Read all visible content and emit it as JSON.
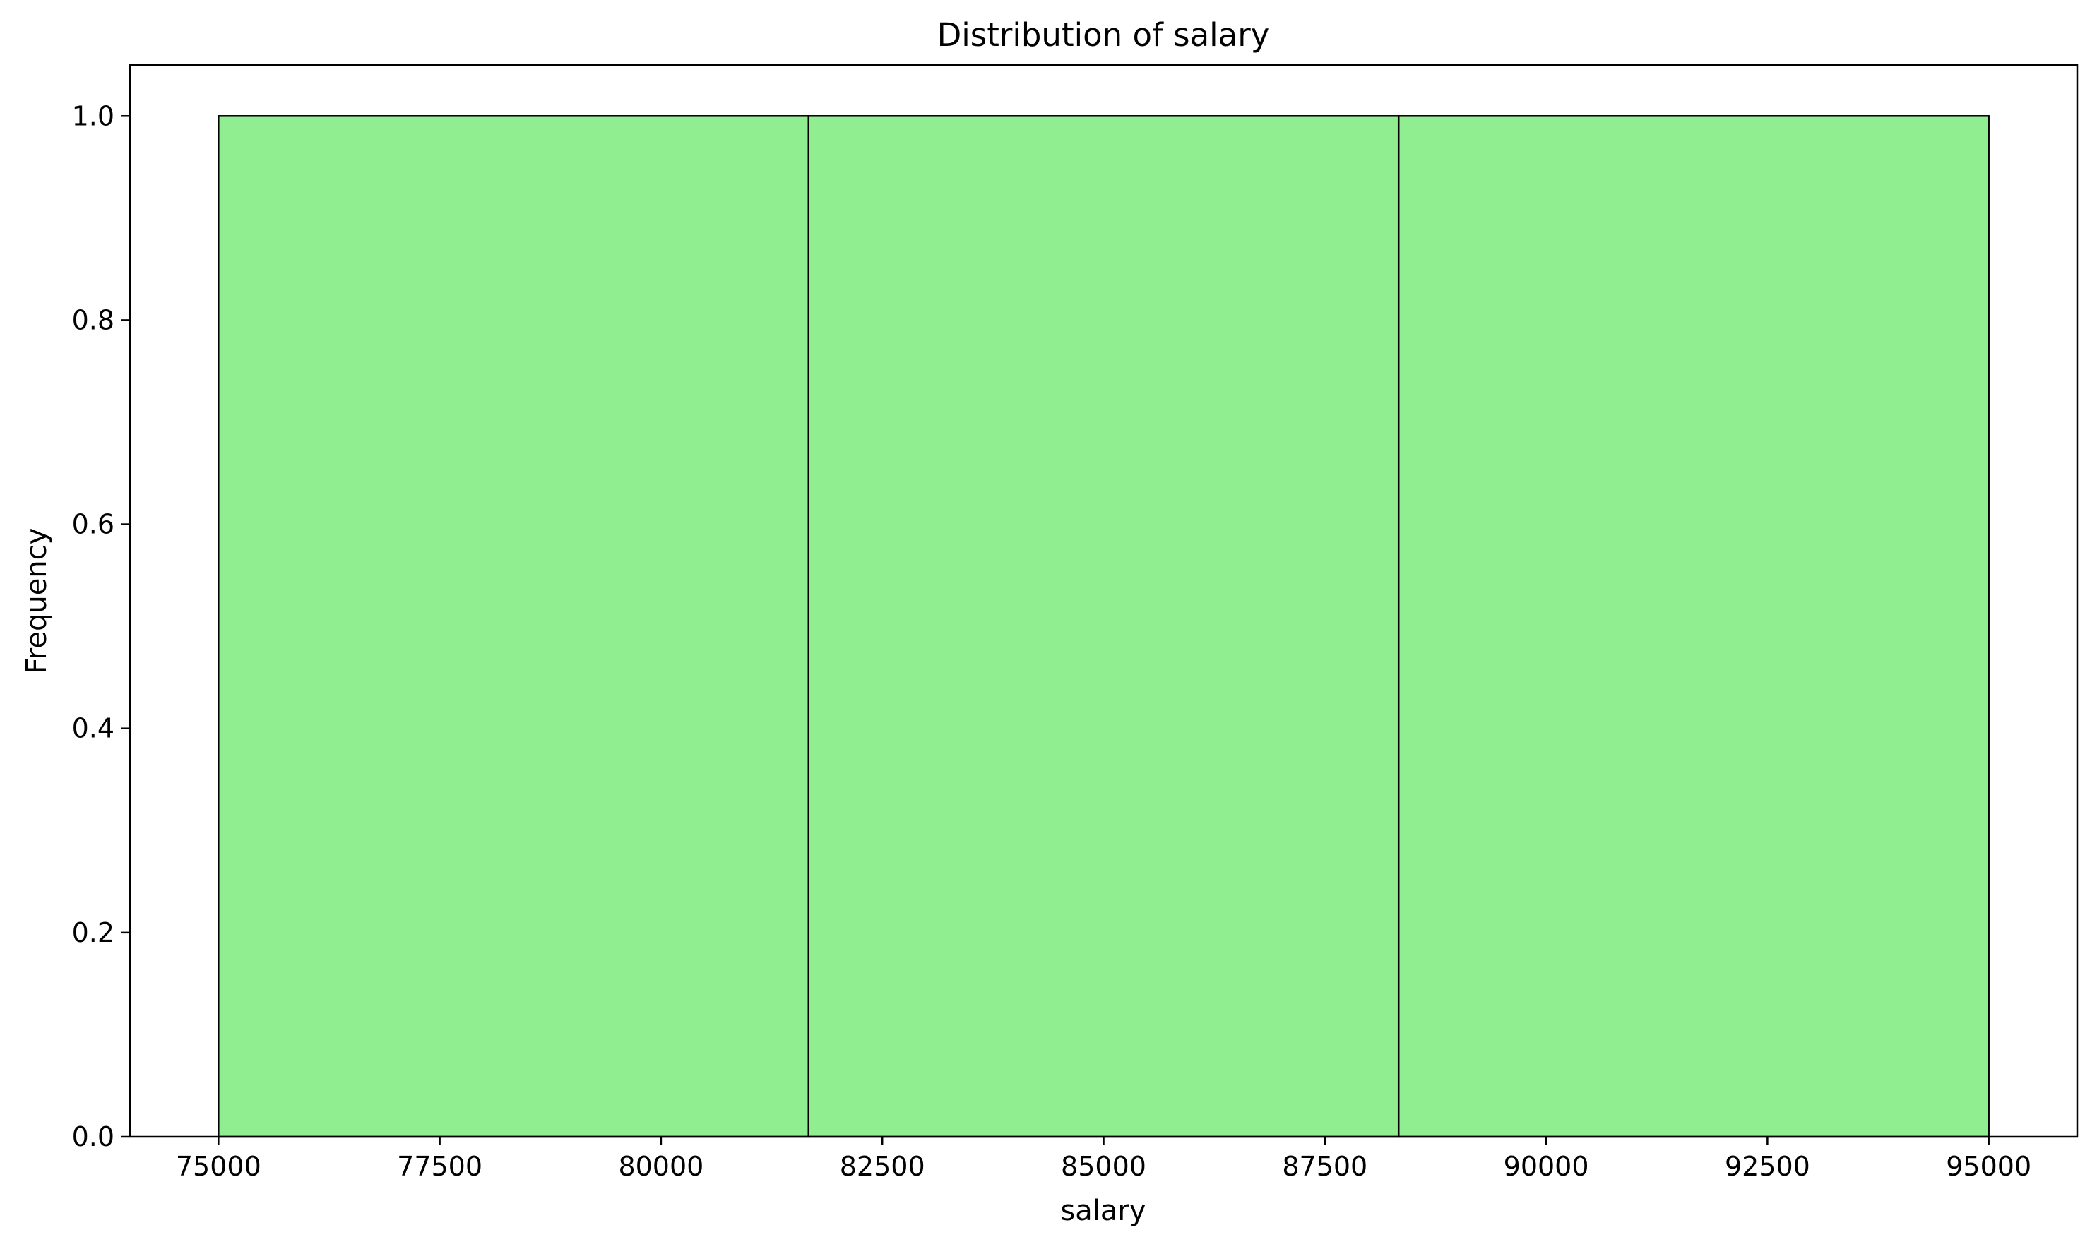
{
  "chart_data": {
    "type": "bar",
    "subtype": "histogram",
    "title": "Distribution of salary",
    "xlabel": "salary",
    "ylabel": "Frequency",
    "bins": [
      {
        "start": 75000,
        "end": 81666.67,
        "count": 1.0
      },
      {
        "start": 81666.67,
        "end": 88333.33,
        "count": 1.0
      },
      {
        "start": 88333.33,
        "end": 95000,
        "count": 1.0
      }
    ],
    "xlim": [
      74000,
      96000
    ],
    "ylim": [
      0,
      1.05
    ],
    "xticks": [
      75000,
      77500,
      80000,
      82500,
      85000,
      87500,
      90000,
      92500,
      95000
    ],
    "xtick_labels": [
      "75000",
      "77500",
      "80000",
      "82500",
      "85000",
      "87500",
      "90000",
      "92500",
      "95000"
    ],
    "yticks": [
      0.0,
      0.2,
      0.4,
      0.6,
      0.8,
      1.0
    ],
    "ytick_labels": [
      "0.0",
      "0.2",
      "0.4",
      "0.6",
      "0.8",
      "1.0"
    ],
    "grid": false,
    "legend": "none",
    "colors": {
      "bar_fill": "#90ee90",
      "bar_edge": "#000000",
      "axes": "#000000"
    }
  }
}
